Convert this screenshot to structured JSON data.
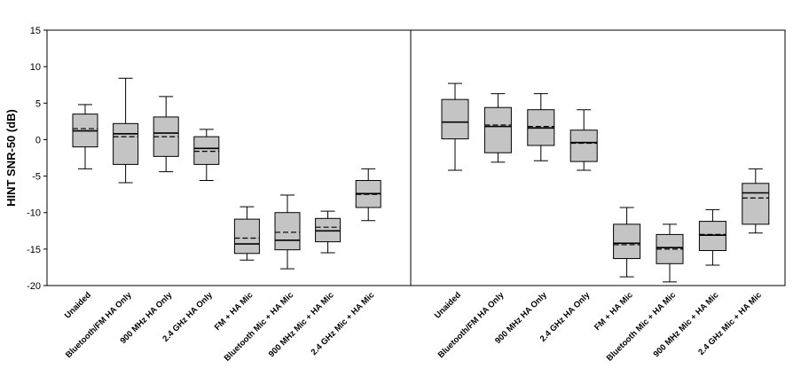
{
  "chart_data": [
    {
      "type": "box",
      "panel": "left",
      "ylabel": "HINT SNR-50 (dB)",
      "ylim": [
        -20,
        15
      ],
      "yticks": [
        15,
        10,
        5,
        0,
        -5,
        -10,
        -15,
        -20
      ],
      "categories": [
        "Unaided",
        "Bluetooth/FM HA Only",
        "900 MHz HA Only",
        "2.4 GHz HA Only",
        "FM + HA Mic",
        "Bluetooth Mic + HA Mic",
        "900 MHz Mic + HA Mic",
        "2.4 GHz Mic + HA Mic"
      ],
      "boxes": [
        {
          "min": -4.0,
          "q1": -1.0,
          "median": 1.2,
          "mean": 1.5,
          "q3": 3.5,
          "max": 4.8
        },
        {
          "min": -5.9,
          "q1": -3.4,
          "median": 0.8,
          "mean": 0.4,
          "q3": 2.2,
          "max": 8.4
        },
        {
          "min": -4.4,
          "q1": -2.3,
          "median": 0.9,
          "mean": 0.4,
          "q3": 3.1,
          "max": 5.9
        },
        {
          "min": -5.6,
          "q1": -3.4,
          "median": -1.2,
          "mean": -1.6,
          "q3": 0.4,
          "max": 1.4
        },
        {
          "min": -16.5,
          "q1": -15.6,
          "median": -14.3,
          "mean": -13.5,
          "q3": -10.9,
          "max": -9.2
        },
        {
          "min": -17.7,
          "q1": -15.1,
          "median": -13.8,
          "mean": -12.7,
          "q3": -10.0,
          "max": -7.6
        },
        {
          "min": -15.5,
          "q1": -14.0,
          "median": -12.5,
          "mean": -12.0,
          "q3": -10.8,
          "max": -9.8
        },
        {
          "min": -11.1,
          "q1": -9.3,
          "median": -7.4,
          "mean": -7.5,
          "q3": -5.6,
          "max": -4.0
        }
      ]
    },
    {
      "type": "box",
      "panel": "right",
      "ylim": [
        -20,
        15
      ],
      "categories": [
        "Unaided",
        "Bluetooth/FM HA Only",
        "900 MHz HA Only",
        "2.4 GHz HA Only",
        "FM + HA Mic",
        "Bluetooth Mic + HA Mic",
        "900 MHz Mic + HA Mic",
        "2.4 GHz Mic + HA Mic"
      ],
      "boxes": [
        {
          "min": -4.2,
          "q1": 0.1,
          "median": 2.4,
          "mean": 2.4,
          "q3": 5.5,
          "max": 7.7
        },
        {
          "min": -3.1,
          "q1": -1.8,
          "median": 1.8,
          "mean": 2.0,
          "q3": 4.4,
          "max": 6.3
        },
        {
          "min": -2.9,
          "q1": -0.8,
          "median": 1.6,
          "mean": 1.8,
          "q3": 4.1,
          "max": 6.3
        },
        {
          "min": -4.2,
          "q1": -3.0,
          "median": -0.4,
          "mean": -0.5,
          "q3": 1.3,
          "max": 4.1
        },
        {
          "min": -18.8,
          "q1": -16.3,
          "median": -14.2,
          "mean": -14.4,
          "q3": -11.6,
          "max": -9.3
        },
        {
          "min": -19.5,
          "q1": -17.0,
          "median": -14.8,
          "mean": -15.0,
          "q3": -13.0,
          "max": -11.6
        },
        {
          "min": -17.2,
          "q1": -15.2,
          "median": -13.1,
          "mean": -13.0,
          "q3": -11.2,
          "max": -9.6
        },
        {
          "min": -12.8,
          "q1": -11.6,
          "median": -7.3,
          "mean": -8.0,
          "q3": -6.0,
          "max": -4.0
        }
      ]
    }
  ]
}
